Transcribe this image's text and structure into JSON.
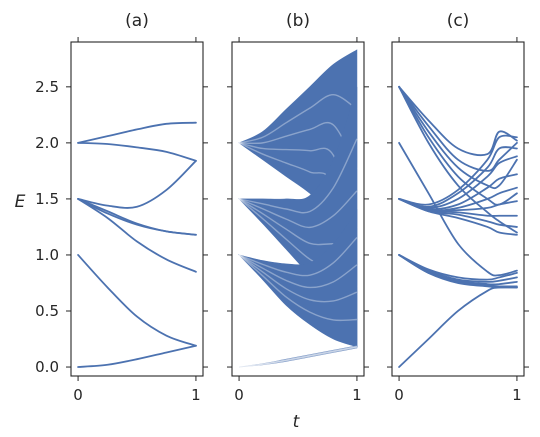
{
  "chart_data": {
    "type": "line",
    "xlabel": "t",
    "ylabel": "E",
    "ylim": [
      -0.08,
      2.9
    ],
    "xlim": [
      -0.06,
      1.06
    ],
    "y_ticks": [
      0.0,
      0.5,
      1.0,
      1.5,
      2.0,
      2.5
    ],
    "y_tick_labels": [
      "0.0",
      "0.5",
      "1.0",
      "1.5",
      "2.0",
      "2.5"
    ],
    "x_ticks": [
      0,
      1
    ],
    "x_tick_labels": [
      "0",
      "1"
    ],
    "grid": false,
    "panels": [
      {
        "label": "(a)",
        "lines": [
          {
            "x": [
              0,
              0.25,
              0.5,
              0.75,
              1
            ],
            "y": [
              2.0,
              2.06,
              2.12,
              2.17,
              2.18
            ]
          },
          {
            "x": [
              0,
              0.25,
              0.5,
              0.75,
              1
            ],
            "y": [
              2.0,
              1.99,
              1.96,
              1.92,
              1.84
            ]
          },
          {
            "x": [
              0,
              0.25,
              0.5,
              0.75,
              1
            ],
            "y": [
              1.5,
              1.44,
              1.43,
              1.58,
              1.84
            ]
          },
          {
            "x": [
              0,
              0.25,
              0.5,
              0.75,
              1
            ],
            "y": [
              1.5,
              1.39,
              1.28,
              1.21,
              1.18
            ]
          },
          {
            "x": [
              0,
              0.25,
              0.5,
              0.75,
              1
            ],
            "y": [
              1.5,
              1.37,
              1.27,
              1.21,
              1.18
            ]
          },
          {
            "x": [
              0,
              0.25,
              0.5,
              0.75,
              1
            ],
            "y": [
              1.5,
              1.33,
              1.12,
              0.96,
              0.85
            ]
          },
          {
            "x": [
              0,
              0.25,
              0.5,
              0.75,
              1
            ],
            "y": [
              1.0,
              0.71,
              0.45,
              0.28,
              0.19
            ]
          },
          {
            "x": [
              0,
              0.25,
              0.5,
              0.75,
              1
            ],
            "y": [
              0.0,
              0.02,
              0.07,
              0.13,
              0.19
            ]
          }
        ]
      },
      {
        "label": "(b)",
        "bands": [
          {
            "x": [
              0,
              0.2,
              0.4,
              0.6,
              0.8,
              1
            ],
            "lower": [
              2.0,
              1.85,
              1.7,
              1.55,
              1.35,
              0.18
            ],
            "upper": [
              2.0,
              2.1,
              2.3,
              2.5,
              2.7,
              2.83
            ]
          },
          {
            "x": [
              0,
              0.2,
              0.4,
              0.6,
              0.8,
              1
            ],
            "lower": [
              1.5,
              1.28,
              1.05,
              0.82,
              0.6,
              0.18
            ],
            "upper": [
              1.5,
              1.5,
              1.5,
              1.53,
              1.85,
              2.5
            ]
          },
          {
            "x": [
              0,
              0.2,
              0.4,
              0.6,
              0.8,
              1
            ],
            "lower": [
              1.0,
              0.78,
              0.55,
              0.38,
              0.25,
              0.18
            ],
            "upper": [
              1.0,
              0.95,
              0.92,
              0.93,
              1.1,
              1.4
            ]
          },
          {
            "x": [
              0,
              0.2,
              0.4,
              0.6,
              0.8,
              1
            ],
            "lower": [
              0.0,
              0.02,
              0.05,
              0.09,
              0.13,
              0.17
            ],
            "upper": [
              0.0,
              0.03,
              0.07,
              0.11,
              0.15,
              0.19
            ]
          }
        ]
      },
      {
        "label": "(c)",
        "lines": [
          {
            "x": [
              0,
              0.25,
              0.5,
              0.75,
              0.85,
              1
            ],
            "y": [
              2.5,
              2.2,
              1.95,
              1.9,
              2.1,
              2.02
            ]
          },
          {
            "x": [
              0,
              0.25,
              0.5,
              0.75,
              0.85,
              1
            ],
            "y": [
              2.5,
              2.15,
              1.85,
              1.75,
              1.85,
              2.0
            ]
          },
          {
            "x": [
              0,
              0.25,
              0.5,
              0.75,
              0.85,
              1
            ],
            "y": [
              2.5,
              2.1,
              1.78,
              1.62,
              1.62,
              1.85
            ]
          },
          {
            "x": [
              0,
              0.25,
              0.5,
              0.75,
              0.85,
              1
            ],
            "y": [
              2.5,
              2.05,
              1.7,
              1.5,
              1.45,
              1.55
            ]
          },
          {
            "x": [
              0,
              0.25,
              0.5,
              0.75,
              0.85,
              1
            ],
            "y": [
              2.5,
              2.0,
              1.62,
              1.38,
              1.3,
              1.2
            ]
          },
          {
            "x": [
              0,
              0.25,
              0.5,
              0.75,
              0.85,
              1
            ],
            "y": [
              1.5,
              1.45,
              1.58,
              1.85,
              2.05,
              2.05
            ]
          },
          {
            "x": [
              0,
              0.25,
              0.5,
              0.75,
              0.85,
              1
            ],
            "y": [
              1.5,
              1.43,
              1.55,
              1.78,
              1.95,
              1.95
            ]
          },
          {
            "x": [
              0,
              0.25,
              0.5,
              0.75,
              0.85,
              1
            ],
            "y": [
              1.5,
              1.42,
              1.5,
              1.7,
              1.82,
              1.88
            ]
          },
          {
            "x": [
              0,
              0.25,
              0.5,
              0.75,
              0.85,
              1
            ],
            "y": [
              1.5,
              1.41,
              1.45,
              1.6,
              1.68,
              1.72
            ]
          },
          {
            "x": [
              0,
              0.25,
              0.5,
              0.75,
              0.85,
              1
            ],
            "y": [
              1.5,
              1.4,
              1.42,
              1.5,
              1.55,
              1.6
            ]
          },
          {
            "x": [
              0,
              0.25,
              0.5,
              0.75,
              0.85,
              1
            ],
            "y": [
              1.5,
              1.4,
              1.4,
              1.42,
              1.45,
              1.48
            ]
          },
          {
            "x": [
              0,
              0.25,
              0.5,
              0.75,
              0.85,
              1
            ],
            "y": [
              1.5,
              1.4,
              1.38,
              1.35,
              1.35,
              1.35
            ]
          },
          {
            "x": [
              0,
              0.25,
              0.5,
              0.75,
              0.85,
              1
            ],
            "y": [
              1.5,
              1.39,
              1.36,
              1.3,
              1.27,
              1.25
            ]
          },
          {
            "x": [
              0,
              0.25,
              0.5,
              0.75,
              0.85,
              1
            ],
            "y": [
              1.5,
              1.39,
              1.33,
              1.25,
              1.2,
              1.18
            ]
          },
          {
            "x": [
              0,
              0.25,
              0.5,
              0.75,
              0.85,
              1
            ],
            "y": [
              2.0,
              1.55,
              1.1,
              0.85,
              0.82,
              0.86
            ]
          },
          {
            "x": [
              0,
              0.25,
              0.5,
              0.75,
              0.85,
              1
            ],
            "y": [
              1.0,
              0.87,
              0.8,
              0.78,
              0.8,
              0.84
            ]
          },
          {
            "x": [
              0,
              0.25,
              0.5,
              0.75,
              0.85,
              1
            ],
            "y": [
              1.0,
              0.86,
              0.78,
              0.76,
              0.77,
              0.8
            ]
          },
          {
            "x": [
              0,
              0.25,
              0.5,
              0.75,
              0.85,
              1
            ],
            "y": [
              1.0,
              0.85,
              0.77,
              0.74,
              0.74,
              0.76
            ]
          },
          {
            "x": [
              0,
              0.25,
              0.5,
              0.75,
              0.85,
              1
            ],
            "y": [
              1.0,
              0.84,
              0.76,
              0.73,
              0.72,
              0.72
            ]
          },
          {
            "x": [
              0,
              0.25,
              0.5,
              0.75,
              0.85,
              1
            ],
            "y": [
              1.0,
              0.84,
              0.75,
              0.72,
              0.71,
              0.71
            ]
          },
          {
            "x": [
              0,
              0.25,
              0.5,
              0.75,
              0.85,
              1
            ],
            "y": [
              0.0,
              0.25,
              0.5,
              0.68,
              0.71,
              0.71
            ]
          }
        ]
      }
    ]
  },
  "colors": {
    "line": "#4c72b0",
    "axis": "#262626",
    "background": "#ffffff"
  }
}
